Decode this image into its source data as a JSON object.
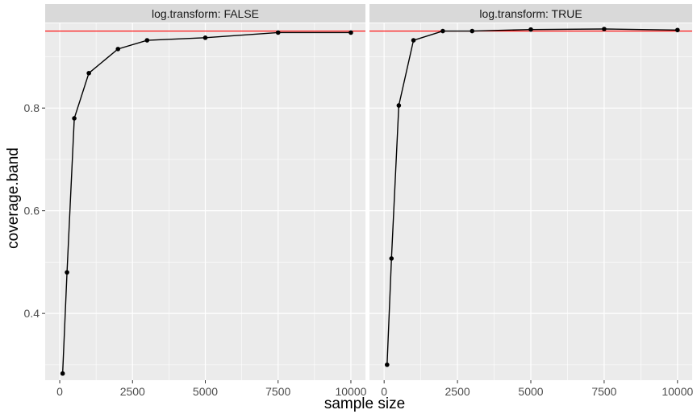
{
  "chart_data": {
    "type": "line",
    "xlabel": "sample size",
    "ylabel": "coverage.band",
    "xlim": [
      -500,
      10500
    ],
    "ylim": [
      0.27,
      0.965
    ],
    "x_ticks": [
      0,
      2500,
      5000,
      7500,
      10000
    ],
    "x_tick_labels": [
      "0",
      "2500",
      "5000",
      "7500",
      "10000"
    ],
    "y_ticks": [
      0.4,
      0.6,
      0.8
    ],
    "y_tick_labels": [
      "0.4",
      "0.6",
      "0.8"
    ],
    "reference_line": {
      "y": 0.95,
      "color": "#ff0000"
    },
    "grid": true,
    "colors": {
      "panel_bg": "#ebebeb",
      "strip_bg": "#d9d9d9",
      "grid": "#ffffff",
      "series": "#000000"
    },
    "panels": [
      {
        "label": "log.transform: FALSE",
        "x": [
          100,
          250,
          500,
          1000,
          2000,
          3000,
          5000,
          7500,
          10000
        ],
        "y": [
          0.283,
          0.48,
          0.78,
          0.868,
          0.915,
          0.932,
          0.937,
          0.947,
          0.947
        ]
      },
      {
        "label": "log.transform: TRUE",
        "x": [
          100,
          250,
          500,
          1000,
          2000,
          3000,
          5000,
          7500,
          10000
        ],
        "y": [
          0.3,
          0.507,
          0.805,
          0.932,
          0.95,
          0.95,
          0.953,
          0.954,
          0.952
        ]
      }
    ]
  }
}
